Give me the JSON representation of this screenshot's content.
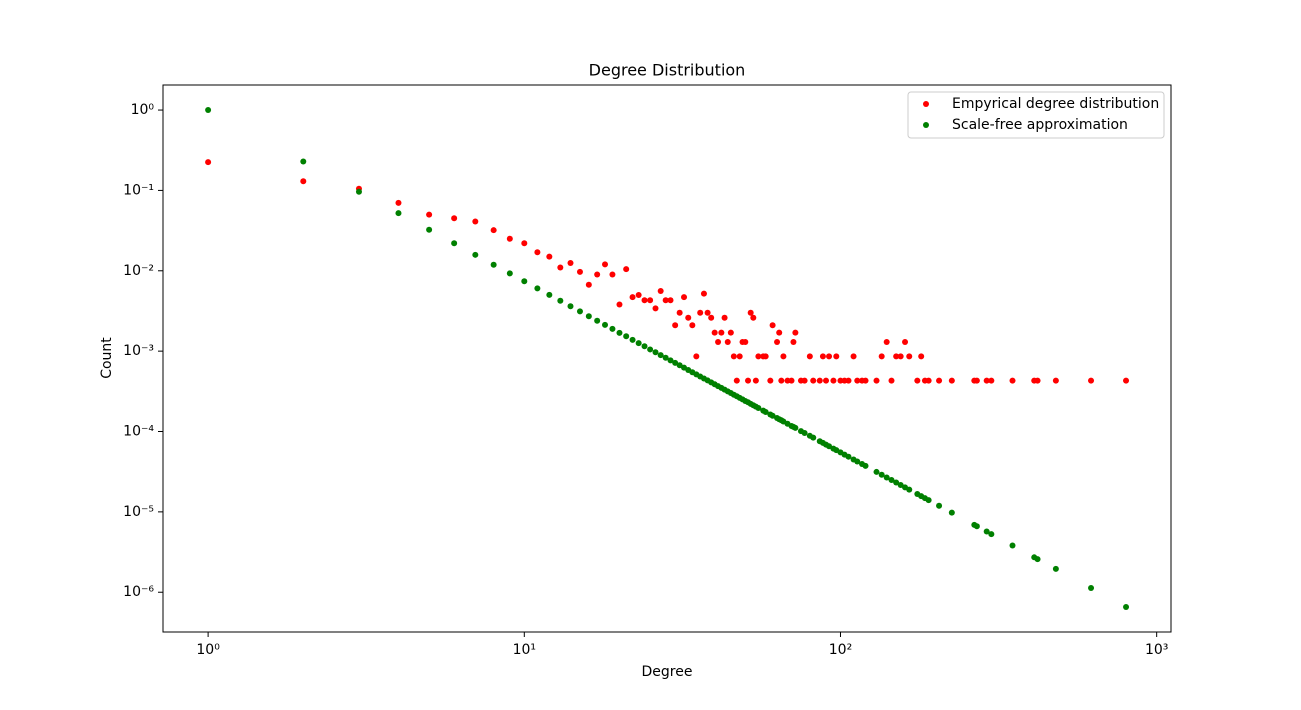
{
  "chart_data": {
    "type": "scatter",
    "title": "Degree Distribution",
    "x_label": "Degree",
    "y_label": "Count",
    "x": [
      1,
      2,
      3,
      4,
      5,
      6,
      7,
      8,
      9,
      10,
      11,
      12,
      13,
      14,
      15,
      16,
      17,
      18,
      19,
      20,
      21,
      22,
      23,
      24,
      25,
      26,
      27,
      28,
      29,
      30,
      31,
      32,
      33,
      34,
      35,
      36,
      37,
      38,
      39,
      40,
      41,
      42,
      43,
      44,
      45,
      46,
      47,
      48,
      49,
      50,
      51,
      52,
      53,
      54,
      55,
      57,
      58,
      60,
      61,
      63,
      64,
      65,
      66,
      68,
      70,
      71,
      72,
      75,
      77,
      80,
      82,
      86,
      88,
      90,
      92,
      95,
      97,
      100,
      103,
      106,
      110,
      113,
      117,
      120,
      130,
      135,
      140,
      145,
      150,
      155,
      160,
      165,
      175,
      180,
      185,
      190,
      205,
      225,
      265,
      270,
      290,
      300,
      350,
      410,
      420,
      480,
      620,
      800
    ],
    "series": [
      {
        "name": "Empyrical degree distribution",
        "color": "#ff0000",
        "values": [
          0.225,
          0.13,
          0.105,
          0.07,
          0.05,
          0.045,
          0.041,
          0.032,
          0.025,
          0.022,
          0.017,
          0.015,
          0.011,
          0.0125,
          0.0097,
          0.0067,
          0.009,
          0.012,
          0.009,
          0.0038,
          0.0105,
          0.0047,
          0.005,
          0.0043,
          0.0043,
          0.0034,
          0.0056,
          0.0043,
          0.0043,
          0.0021,
          0.003,
          0.0047,
          0.0026,
          0.0021,
          0.00086,
          0.003,
          0.0052,
          0.003,
          0.0026,
          0.0017,
          0.0013,
          0.0017,
          0.0026,
          0.0013,
          0.0017,
          0.00086,
          0.00043,
          0.00086,
          0.0013,
          0.0013,
          0.00043,
          0.003,
          0.0026,
          0.00043,
          0.00086,
          0.00086,
          0.00086,
          0.00043,
          0.0021,
          0.0013,
          0.0017,
          0.00043,
          0.00086,
          0.00043,
          0.00043,
          0.0013,
          0.0017,
          0.00043,
          0.00043,
          0.00086,
          0.00043,
          0.00043,
          0.00086,
          0.00043,
          0.00086,
          0.00043,
          0.00086,
          0.00043,
          0.00043,
          0.00043,
          0.00086,
          0.00043,
          0.00043,
          0.00043,
          0.00043,
          0.00086,
          0.0013,
          0.00043,
          0.00086,
          0.00086,
          0.0013,
          0.00086,
          0.00043,
          0.00086,
          0.00043,
          0.00043,
          0.00043,
          0.00043,
          0.00043,
          0.00043,
          0.00043,
          0.00043,
          0.00043,
          0.00043,
          0.00043,
          0.00043,
          0.00043,
          0.00043
        ]
      },
      {
        "name": "Scale-free approximation",
        "color": "#008000",
        "values": [
          1,
          0.229,
          0.0964,
          0.0522,
          0.0324,
          0.022,
          0.0158,
          0.0119,
          0.00927,
          0.00741,
          0.00605,
          0.00502,
          0.00424,
          0.00362,
          0.00313,
          0.00272,
          0.00239,
          0.00212,
          0.00189,
          0.00169,
          0.00153,
          0.00138,
          0.00126,
          0.00115,
          0.00105,
          0.000968,
          0.000893,
          0.000827,
          0.000768,
          0.000714,
          0.000667,
          0.000623,
          0.000583,
          0.000547,
          0.000514,
          0.000484,
          0.000457,
          0.000432,
          0.000408,
          0.000387,
          0.000367,
          0.000349,
          0.000332,
          0.000316,
          0.000301,
          0.000287,
          0.000275,
          0.000262,
          0.000251,
          0.00024,
          0.000231,
          0.000221,
          0.000212,
          0.000204,
          0.000196,
          0.000182,
          0.000175,
          0.000163,
          0.000157,
          0.000147,
          0.000142,
          0.000138,
          0.000133,
          0.000125,
          0.000117,
          0.000114,
          0.000111,
          0.000101,
          9.59e-05,
          8.84e-05,
          8.38e-05,
          7.57e-05,
          7.21e-05,
          6.87e-05,
          6.56e-05,
          6.12e-05,
          5.86e-05,
          5.5e-05,
          5.16e-05,
          4.86e-05,
          4.49e-05,
          4.24e-05,
          3.94e-05,
          3.73e-05,
          3.14e-05,
          2.9e-05,
          2.68e-05,
          2.49e-05,
          2.32e-05,
          2.16e-05,
          2.02e-05,
          1.89e-05,
          1.67e-05,
          1.57e-05,
          1.48e-05,
          1.4e-05,
          1.19e-05,
          9.77e-06,
          6.9e-06,
          6.62e-06,
          5.69e-06,
          5.28e-06,
          3.81e-06,
          2.72e-06,
          2.58e-06,
          1.95e-06,
          1.13e-06,
          6.56e-07
        ]
      }
    ],
    "x_log": true,
    "y_log": true,
    "xlim": [
      0.72,
      1110
    ],
    "ylim": [
      3.2e-07,
      2.05
    ],
    "xticks": [
      {
        "value": 1,
        "label": "10⁰"
      },
      {
        "value": 10,
        "label": "10¹"
      },
      {
        "value": 100,
        "label": "10²"
      },
      {
        "value": 1000,
        "label": "10³"
      }
    ],
    "yticks": [
      {
        "value": 1e-06,
        "label": "10⁻⁶"
      },
      {
        "value": 1e-05,
        "label": "10⁻⁵"
      },
      {
        "value": 0.0001,
        "label": "10⁻⁴"
      },
      {
        "value": 0.001,
        "label": "10⁻³"
      },
      {
        "value": 0.01,
        "label": "10⁻²"
      },
      {
        "value": 0.1,
        "label": "10⁻¹"
      },
      {
        "value": 1,
        "label": "10⁰"
      }
    ],
    "legend": "upper right",
    "grid": false
  }
}
